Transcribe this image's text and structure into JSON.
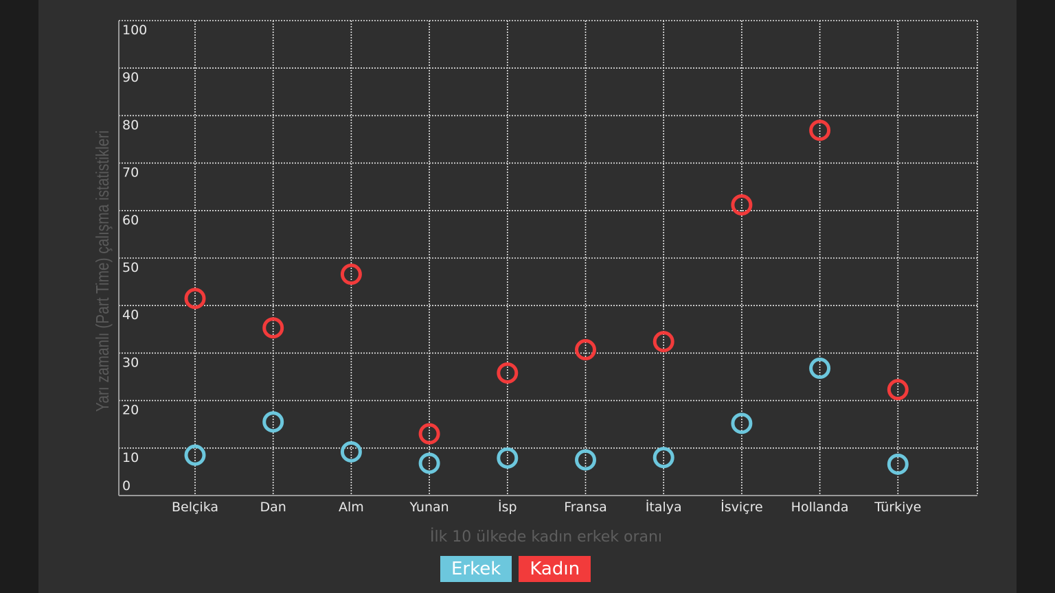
{
  "chart_data": {
    "type": "scatter",
    "categories": [
      "Belçika",
      "Dan",
      "Alm",
      "Yunan",
      "İsp",
      "Fransa",
      "İtalya",
      "İsviçre",
      "Hollanda",
      "Türkiye"
    ],
    "series": [
      {
        "name": "Erkek",
        "color": "#6cc7dd",
        "values": [
          8.5,
          15.5,
          9.2,
          6.8,
          7.9,
          7.5,
          8.0,
          15.2,
          26.8,
          6.6
        ]
      },
      {
        "name": "Kadın",
        "color": "#f23b3b",
        "values": [
          41.5,
          35.3,
          46.6,
          13.0,
          25.8,
          30.7,
          32.4,
          61.2,
          76.9,
          22.3
        ]
      }
    ],
    "ylim": [
      0,
      100
    ],
    "yticks": [
      0,
      10,
      20,
      30,
      40,
      50,
      60,
      70,
      80,
      90,
      100
    ],
    "ylabel": "Yarı zamanlı (Part Time) çalışma istatistikleri",
    "xlabel": "İlk 10 ülkede kadın erkek oranı",
    "grid": true,
    "legend": "bottom-center"
  }
}
